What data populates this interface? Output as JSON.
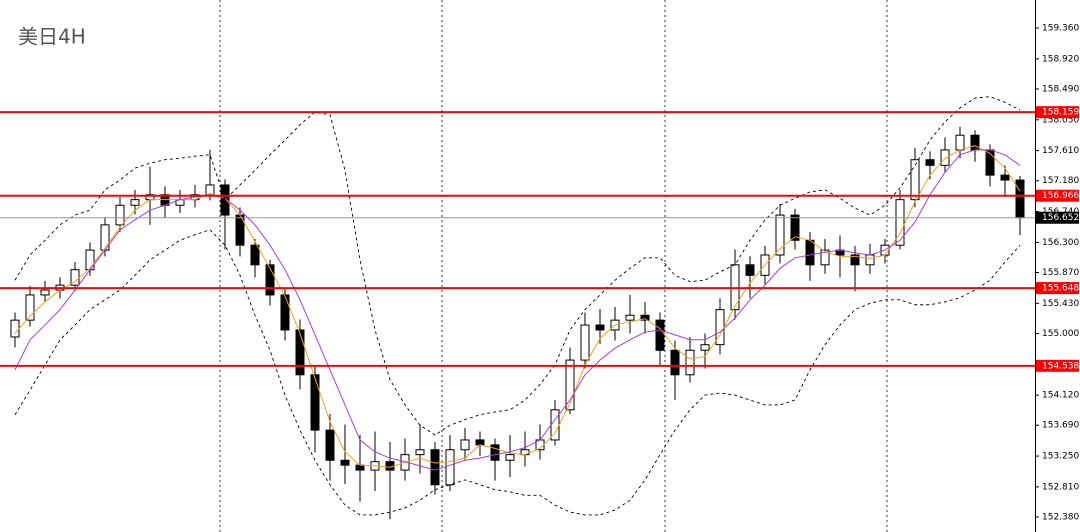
{
  "chart_data": {
    "type": "candlestick",
    "title": "美日4H",
    "ylim": [
      152.166,
      159.76
    ],
    "yticks": [
      {
        "value": 159.36,
        "label": "159.360"
      },
      {
        "value": 158.92,
        "label": "158.920"
      },
      {
        "value": 158.49,
        "label": "158.490"
      },
      {
        "value": 158.05,
        "label": "158.050"
      },
      {
        "value": 157.61,
        "label": "157.610"
      },
      {
        "value": 157.18,
        "label": "157.180"
      },
      {
        "value": 156.74,
        "label": "156.740"
      },
      {
        "value": 156.3,
        "label": "156.300"
      },
      {
        "value": 155.87,
        "label": "155.870"
      },
      {
        "value": 155.43,
        "label": "155.430"
      },
      {
        "value": 155.0,
        "label": "155.000"
      },
      {
        "value": 154.56,
        "label": "154.560"
      },
      {
        "value": 154.12,
        "label": "154.120"
      },
      {
        "value": 153.69,
        "label": "153.690"
      },
      {
        "value": 153.25,
        "label": "153.250"
      },
      {
        "value": 152.81,
        "label": "152.810"
      },
      {
        "value": 152.38,
        "label": "152.380"
      }
    ],
    "up_color": "#ffffff",
    "down_color": "#000000",
    "open": [
      154.95,
      155.19,
      155.55,
      155.62,
      155.69,
      155.91,
      156.19,
      156.55,
      156.83,
      156.91,
      156.98,
      156.83,
      156.91,
      156.98,
      157.12,
      156.69,
      156.26,
      155.98,
      155.55,
      155.05,
      154.41,
      153.62,
      153.19,
      153.12,
      153.05,
      153.17,
      153.05,
      153.27,
      153.34,
      152.84,
      153.34,
      153.48,
      153.41,
      153.19,
      153.27,
      153.34,
      153.48,
      153.91,
      154.62,
      155.12,
      155.05,
      155.19,
      155.26,
      155.19,
      154.76,
      154.41,
      154.76,
      154.84,
      155.34,
      155.98,
      155.83,
      156.12,
      156.69,
      156.33,
      155.98,
      156.19,
      156.12,
      155.98,
      156.12,
      156.26,
      156.91,
      157.48,
      157.4,
      157.62,
      157.83,
      157.62,
      157.26,
      157.19
    ],
    "high": [
      155.3,
      155.68,
      155.75,
      155.8,
      156.02,
      156.3,
      156.66,
      156.95,
      157.05,
      157.38,
      157.1,
      157.05,
      157.12,
      157.62,
      157.2,
      156.8,
      156.35,
      156.05,
      155.65,
      155.2,
      154.55,
      153.85,
      153.7,
      153.55,
      153.6,
      153.45,
      153.5,
      153.7,
      153.45,
      153.55,
      153.65,
      153.6,
      153.5,
      153.55,
      153.6,
      153.7,
      154.05,
      154.8,
      155.3,
      155.35,
      155.38,
      155.55,
      155.45,
      155.3,
      154.9,
      154.95,
      155.0,
      155.5,
      156.2,
      156.1,
      156.25,
      156.85,
      156.78,
      156.45,
      156.35,
      156.4,
      156.25,
      156.28,
      156.35,
      157.05,
      157.65,
      157.6,
      157.8,
      157.95,
      157.9,
      157.7,
      157.4,
      157.25
    ],
    "low": [
      154.8,
      155.1,
      155.45,
      155.5,
      155.6,
      155.82,
      156.1,
      156.45,
      156.7,
      156.55,
      156.65,
      156.72,
      156.8,
      156.9,
      156.2,
      156.1,
      155.8,
      155.4,
      154.9,
      154.2,
      153.3,
      152.9,
      152.85,
      152.6,
      152.75,
      152.35,
      152.9,
      153.0,
      152.7,
      152.75,
      153.2,
      153.25,
      152.9,
      152.95,
      153.1,
      153.2,
      153.4,
      153.85,
      154.5,
      154.85,
      154.9,
      155.0,
      155.0,
      154.55,
      154.05,
      154.3,
      154.5,
      154.7,
      155.2,
      155.5,
      155.7,
      156.0,
      156.2,
      155.75,
      155.85,
      155.8,
      155.6,
      155.85,
      156.0,
      156.2,
      156.8,
      157.2,
      157.3,
      157.5,
      157.45,
      157.1,
      156.95,
      156.4
    ],
    "close": [
      155.19,
      155.55,
      155.62,
      155.69,
      155.91,
      156.19,
      156.55,
      156.83,
      156.91,
      156.98,
      156.83,
      156.91,
      156.98,
      157.12,
      156.69,
      156.26,
      155.98,
      155.55,
      155.05,
      154.41,
      153.62,
      153.19,
      153.12,
      153.05,
      153.17,
      153.05,
      153.27,
      153.34,
      152.84,
      153.34,
      153.48,
      153.41,
      153.19,
      153.27,
      153.34,
      153.48,
      153.91,
      154.62,
      155.12,
      155.05,
      155.19,
      155.26,
      155.19,
      154.76,
      154.41,
      154.76,
      154.84,
      155.34,
      155.98,
      155.83,
      156.12,
      156.69,
      156.33,
      155.98,
      156.19,
      156.12,
      155.98,
      156.12,
      156.26,
      156.91,
      157.48,
      157.4,
      157.62,
      157.83,
      157.62,
      157.26,
      157.19,
      156.652
    ],
    "lines": [
      {
        "color": "#f0a020",
        "dashed": false,
        "values": [
          155.0,
          155.25,
          155.45,
          155.62,
          155.74,
          155.93,
          156.22,
          156.52,
          156.76,
          156.91,
          156.91,
          156.91,
          156.91,
          157.0,
          156.93,
          156.69,
          156.31,
          155.93,
          155.53,
          155.0,
          154.36,
          153.74,
          153.31,
          153.12,
          153.11,
          153.09,
          153.16,
          153.22,
          153.15,
          153.17,
          153.22,
          153.41,
          153.36,
          153.29,
          153.27,
          153.36,
          153.58,
          154.0,
          154.55,
          154.93,
          155.12,
          155.17,
          155.21,
          155.07,
          154.79,
          154.64,
          154.67,
          154.98,
          155.39,
          155.72,
          155.98,
          156.21,
          156.38,
          156.33,
          156.17,
          156.1,
          156.1,
          156.07,
          156.12,
          156.43,
          156.88,
          157.26,
          157.5,
          157.62,
          157.68,
          157.57,
          157.36,
          157.03
        ]
      },
      {
        "color": "#a040e0",
        "dashed": false,
        "values": [
          154.48,
          154.91,
          155.12,
          155.34,
          155.62,
          155.91,
          156.19,
          156.48,
          156.62,
          156.76,
          156.83,
          156.91,
          156.95,
          156.98,
          156.93,
          156.76,
          156.55,
          156.26,
          155.91,
          155.48,
          154.98,
          154.48,
          153.98,
          153.48,
          153.31,
          153.22,
          153.17,
          153.11,
          153.05,
          153.12,
          153.19,
          153.22,
          153.27,
          153.31,
          153.37,
          153.48,
          153.77,
          154.05,
          154.41,
          154.62,
          154.79,
          154.91,
          155.02,
          155.05,
          154.98,
          154.91,
          154.91,
          155.02,
          155.22,
          155.48,
          155.69,
          155.93,
          156.08,
          156.12,
          156.16,
          156.19,
          156.15,
          156.12,
          156.19,
          156.33,
          156.59,
          156.98,
          157.3,
          157.55,
          157.62,
          157.62,
          157.55,
          157.4
        ]
      },
      {
        "color": "#000000",
        "dashed": true,
        "values": [
          155.76,
          156.12,
          156.33,
          156.55,
          156.69,
          156.76,
          157.05,
          157.19,
          157.36,
          157.43,
          157.48,
          157.5,
          157.53,
          157.55,
          156.91,
          157.12,
          157.33,
          157.55,
          157.76,
          157.98,
          158.16,
          158.12,
          157.33,
          156.05,
          155.05,
          154.34,
          153.98,
          153.69,
          153.55,
          153.69,
          153.77,
          153.84,
          153.88,
          153.91,
          154.05,
          154.27,
          154.55,
          155.05,
          155.34,
          155.55,
          155.76,
          155.93,
          156.08,
          156.08,
          155.83,
          155.74,
          155.76,
          155.88,
          155.98,
          156.33,
          156.62,
          156.83,
          156.93,
          157.02,
          157.05,
          156.93,
          156.79,
          156.69,
          156.83,
          157.08,
          157.4,
          157.76,
          158.02,
          158.22,
          158.36,
          158.38,
          158.3,
          158.19
        ]
      },
      {
        "color": "#000000",
        "dashed": true,
        "values": [
          153.84,
          154.19,
          154.55,
          154.91,
          155.12,
          155.34,
          155.48,
          155.62,
          155.83,
          156.05,
          156.19,
          156.33,
          156.41,
          156.48,
          156.26,
          155.83,
          155.26,
          154.76,
          154.12,
          153.62,
          153.19,
          152.84,
          152.55,
          152.41,
          152.41,
          152.45,
          152.51,
          152.62,
          152.77,
          152.84,
          152.91,
          152.84,
          152.77,
          152.74,
          152.69,
          152.69,
          152.55,
          152.45,
          152.41,
          152.41,
          152.48,
          152.62,
          152.91,
          153.27,
          153.62,
          153.91,
          154.12,
          154.15,
          154.12,
          154.05,
          153.98,
          153.98,
          154.05,
          154.48,
          154.84,
          155.12,
          155.34,
          155.43,
          155.48,
          155.48,
          155.41,
          155.41,
          155.45,
          155.51,
          155.62,
          155.76,
          156.02,
          156.26
        ]
      }
    ],
    "hlines": [
      158.159,
      156.966,
      155.648,
      154.538
    ],
    "hline_color": "#ff0000",
    "last_price": 156.652,
    "last_color": "#000000"
  }
}
